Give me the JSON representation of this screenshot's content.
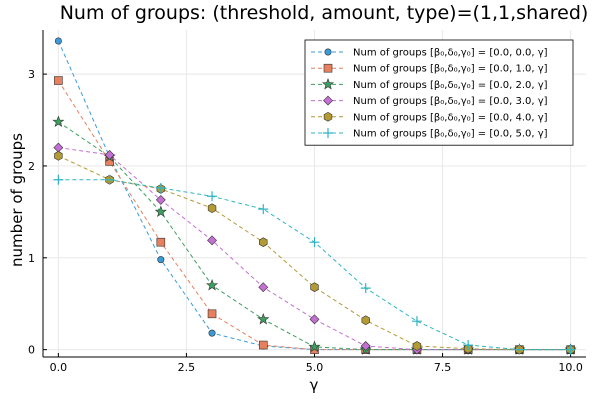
{
  "chart_data": {
    "type": "line",
    "title": "Num of groups: (threshold, amount, type)=(1,1,shared)",
    "xlabel": "γ",
    "ylabel": "number of groups",
    "xlim": [
      -0.3,
      10.3
    ],
    "ylim": [
      -0.08,
      3.48
    ],
    "xticks": [
      0.0,
      2.5,
      5.0,
      7.5,
      10.0
    ],
    "xtick_labels": [
      "0.0",
      "2.5",
      "5.0",
      "7.5",
      "10.0"
    ],
    "yticks": [
      0,
      1,
      2,
      3
    ],
    "ytick_labels": [
      "0",
      "1",
      "2",
      "3"
    ],
    "grid": true,
    "legend_position": "top-right",
    "x": [
      0,
      1,
      2,
      3,
      4,
      5,
      6,
      7,
      8,
      9,
      10
    ],
    "series": [
      {
        "name": "Num of groups [β₀,δ₀,γ₀] = [0.0, 0.0, γ]",
        "color": "#3a9bd9",
        "marker": "circle",
        "values": [
          3.36,
          2.1,
          0.98,
          0.18,
          0.04,
          0.0,
          0.0,
          0.0,
          0.0,
          0.0,
          0.0
        ]
      },
      {
        "name": "Num of groups [β₀,δ₀,γ₀] = [0.0, 1.0, γ]",
        "color": "#e6805e",
        "marker": "square",
        "values": [
          2.93,
          2.05,
          1.17,
          0.39,
          0.05,
          0.0,
          0.0,
          0.0,
          0.0,
          0.0,
          0.0
        ]
      },
      {
        "name": "Num of groups [β₀,δ₀,γ₀] = [0.0, 2.0, γ]",
        "color": "#3c9e5f",
        "marker": "star",
        "values": [
          2.48,
          2.1,
          1.5,
          0.7,
          0.33,
          0.03,
          0.0,
          0.0,
          0.0,
          0.0,
          0.0
        ]
      },
      {
        "name": "Num of groups [β₀,δ₀,γ₀] = [0.0, 3.0, γ]",
        "color": "#c56fd4",
        "marker": "diamond",
        "values": [
          2.2,
          2.12,
          1.63,
          1.19,
          0.68,
          0.33,
          0.04,
          0.0,
          0.0,
          0.0,
          0.0
        ]
      },
      {
        "name": "Num of groups [β₀,δ₀,γ₀] = [0.0, 4.0, γ]",
        "color": "#b39a32",
        "marker": "hexagon",
        "values": [
          2.11,
          1.85,
          1.75,
          1.54,
          1.17,
          0.68,
          0.32,
          0.04,
          0.01,
          0.0,
          0.0
        ]
      },
      {
        "name": "Num of groups [β₀,δ₀,γ₀] = [0.0, 5.0, γ]",
        "color": "#2fb5c4",
        "marker": "plus",
        "values": [
          1.85,
          1.85,
          1.76,
          1.67,
          1.53,
          1.17,
          0.67,
          0.31,
          0.05,
          0.0,
          0.0
        ]
      }
    ]
  }
}
